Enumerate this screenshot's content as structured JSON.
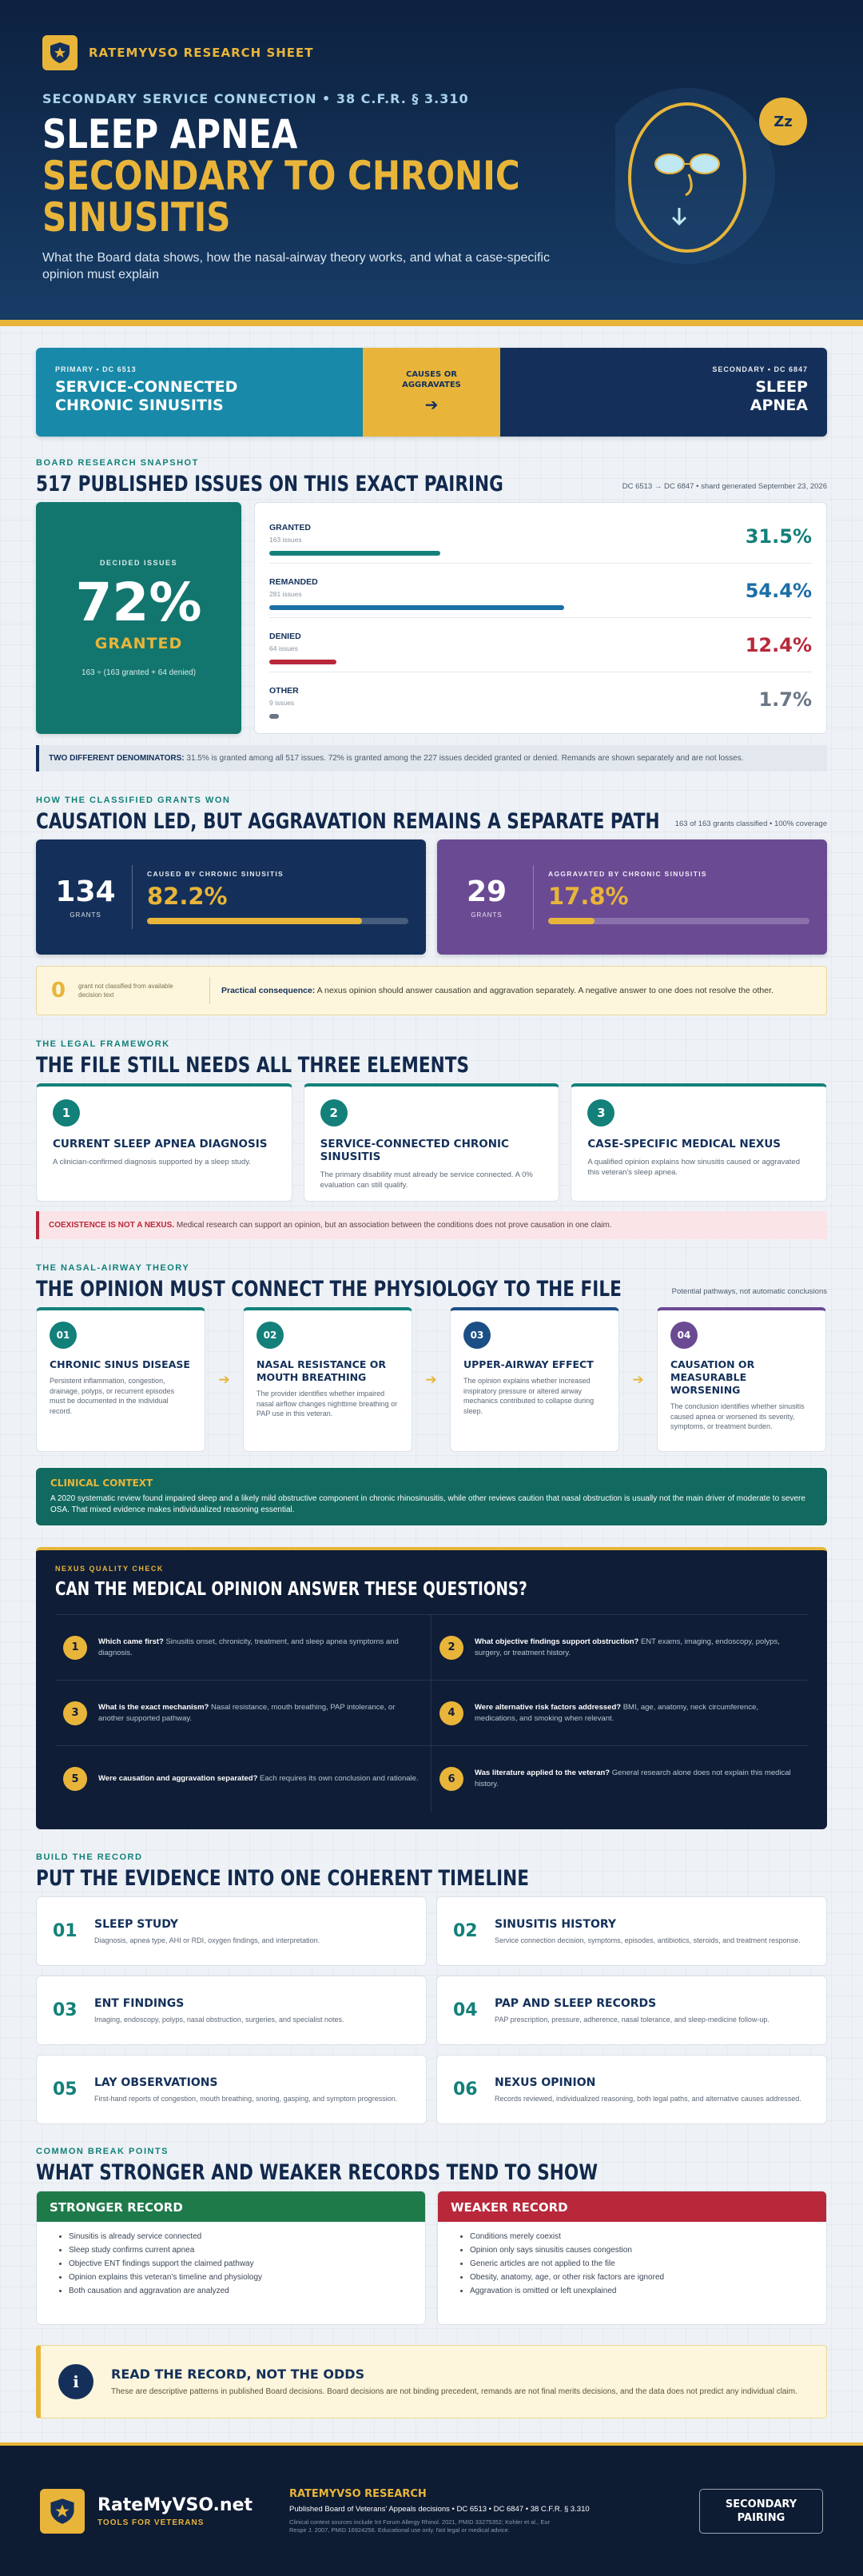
{
  "header": {
    "brand": "RATEMYVSO RESEARCH SHEET",
    "eyebrow": "SECONDARY SERVICE CONNECTION • 38 C.F.R. § 3.310",
    "title_line1": "SLEEP APNEA",
    "title_line2": "SECONDARY TO CHRONIC",
    "title_line3": "SINUSITIS",
    "subtitle": "What the Board data shows, how the nasal-airway theory works, and what a case-specific opinion must explain",
    "badge": "Zz"
  },
  "pairing": {
    "primary_eyebrow": "PRIMARY • DC 6513",
    "primary": "SERVICE-CONNECTED CHRONIC SINUSITIS",
    "link": "CAUSES OR AGGRAVATES",
    "arrow": "➔",
    "secondary_eyebrow": "SECONDARY • DC 6847",
    "secondary": "SLEEP APNEA"
  },
  "snapshot": {
    "eyebrow": "BOARD RESEARCH SNAPSHOT",
    "title": "517 PUBLISHED ISSUES ON THIS EXACT PAIRING",
    "meta": "DC 6513 → DC 6847 • shard generated September 23, 2026",
    "decided_label": "DECIDED ISSUES",
    "decided_value": "72%",
    "decided_caption": "GRANTED",
    "decided_formula": "163 ÷ (163 granted + 64 denied)",
    "outcomes": [
      {
        "name": "GRANTED",
        "count": "163 issues",
        "value": 31.5,
        "value_label": "31.5%",
        "color": "#13807a"
      },
      {
        "name": "REMANDED",
        "count": "281 issues",
        "value": 54.4,
        "value_label": "54.4%",
        "color": "#1c6ea6"
      },
      {
        "name": "DENIED",
        "count": "64 issues",
        "value": 12.4,
        "value_label": "12.4%",
        "color": "#b8283a"
      },
      {
        "name": "OTHER",
        "count": "9 issues",
        "value": 1.7,
        "value_label": "1.7%",
        "color": "#6a7685"
      }
    ],
    "note_lead": "TWO DIFFERENT DENOMINATORS:",
    "note": "31.5% is granted among all 517 issues. 72% is granted among the 227 issues decided granted or denied. Remands are shown separately and are not losses."
  },
  "grants": {
    "eyebrow": "HOW THE CLASSIFIED GRANTS WON",
    "title": "CAUSATION LED, BUT AGGRAVATION REMAINS A SEPARATE PATH",
    "meta": "163 of 163 grants classified • 100% coverage",
    "cards": [
      {
        "count": 134,
        "count_label": "GRANTS",
        "name": "CAUSED BY CHRONIC SINUSITIS",
        "value": 82.2,
        "value_label": "82.2%",
        "color": "#14305a"
      },
      {
        "count": 29,
        "count_label": "GRANTS",
        "name": "AGGRAVATED BY CHRONIC SINUSITIS",
        "value": 17.8,
        "value_label": "17.8%",
        "color": "#6b4a94"
      }
    ],
    "unclassified": 0,
    "unclassified_label": "grant not classified from available decision text",
    "consequence_lead": "Practical consequence:",
    "consequence": "A nexus opinion should answer causation and aggravation separately. A negative answer to one does not resolve the other."
  },
  "legal": {
    "eyebrow": "THE LEGAL FRAMEWORK",
    "title": "THE FILE STILL NEEDS ALL THREE ELEMENTS",
    "elements": [
      {
        "num": "1",
        "title": "CURRENT SLEEP APNEA DIAGNOSIS",
        "text": "A clinician-confirmed diagnosis supported by a sleep study."
      },
      {
        "num": "2",
        "title": "SERVICE-CONNECTED CHRONIC SINUSITIS",
        "text": "The primary disability must already be service connected. A 0% evaluation can still qualify."
      },
      {
        "num": "3",
        "title": "CASE-SPECIFIC MEDICAL NEXUS",
        "text": "A qualified opinion explains how sinusitis caused or aggravated this veteran's sleep apnea."
      }
    ],
    "warn_lead": "COEXISTENCE IS NOT A NEXUS.",
    "warn": "Medical research can support an opinion, but an association between the conditions does not prove causation in one claim."
  },
  "theory": {
    "eyebrow": "THE NASAL-AIRWAY THEORY",
    "title": "THE OPINION MUST CONNECT THE PHYSIOLOGY TO THE FILE",
    "meta": "Potential pathways, not automatic conclusions",
    "steps": [
      {
        "num": "01",
        "title": "CHRONIC SINUS DISEASE",
        "text": "Persistent inflammation, congestion, drainage, polyps, or recurrent episodes must be documented in the individual record.",
        "color": "#13807a"
      },
      {
        "num": "02",
        "title": "NASAL RESISTANCE OR MOUTH BREATHING",
        "text": "The provider identifies whether impaired nasal airflow changes nighttime breathing or PAP use in this veteran.",
        "color": "#13807a"
      },
      {
        "num": "03",
        "title": "UPPER-AIRWAY EFFECT",
        "text": "The opinion explains whether increased inspiratory pressure or altered airway mechanics contributed to collapse during sleep.",
        "color": "#1c4f86"
      },
      {
        "num": "04",
        "title": "CAUSATION OR MEASURABLE WORSENING",
        "text": "The conclusion identifies whether sinusitis caused apnea or worsened its severity, symptoms, or treatment burden.",
        "color": "#6b4a94"
      }
    ],
    "arrow": "➔",
    "context_title": "CLINICAL CONTEXT",
    "context": "A 2020 systematic review found impaired sleep and a likely mild obstructive component in chronic rhinosinusitis, while other reviews caution that nasal obstruction is usually not the main driver of moderate to severe OSA. That mixed evidence makes individualized reasoning essential."
  },
  "quality": {
    "eyebrow": "NEXUS QUALITY CHECK",
    "title": "CAN THE MEDICAL OPINION ANSWER THESE QUESTIONS?",
    "questions": [
      {
        "num": "1",
        "q": "Which came first?",
        "a": "Sinusitis onset, chronicity, treatment, and sleep apnea symptoms and diagnosis."
      },
      {
        "num": "2",
        "q": "What objective findings support obstruction?",
        "a": "ENT exams, imaging, endoscopy, polyps, surgery, or treatment history."
      },
      {
        "num": "3",
        "q": "What is the exact mechanism?",
        "a": "Nasal resistance, mouth breathing, PAP intolerance, or another supported pathway."
      },
      {
        "num": "4",
        "q": "Were alternative risk factors addressed?",
        "a": "BMI, age, anatomy, neck circumference, medications, and smoking when relevant."
      },
      {
        "num": "5",
        "q": "Were causation and aggravation separated?",
        "a": "Each requires its own conclusion and rationale."
      },
      {
        "num": "6",
        "q": "Was literature applied to the veteran?",
        "a": "General research alone does not explain this medical history."
      }
    ]
  },
  "timeline": {
    "eyebrow": "BUILD THE RECORD",
    "title": "PUT THE EVIDENCE INTO ONE COHERENT TIMELINE",
    "items": [
      {
        "num": "01",
        "title": "SLEEP STUDY",
        "text": "Diagnosis, apnea type, AHI or RDI, oxygen findings, and interpretation."
      },
      {
        "num": "02",
        "title": "SINUSITIS HISTORY",
        "text": "Service connection decision, symptoms, episodes, antibiotics, steroids, and treatment response."
      },
      {
        "num": "03",
        "title": "ENT FINDINGS",
        "text": "Imaging, endoscopy, polyps, nasal obstruction, surgeries, and specialist notes."
      },
      {
        "num": "04",
        "title": "PAP AND SLEEP RECORDS",
        "text": "PAP prescription, pressure, adherence, nasal tolerance, and sleep-medicine follow-up."
      },
      {
        "num": "05",
        "title": "LAY OBSERVATIONS",
        "text": "First-hand reports of congestion, mouth breathing, snoring, gasping, and symptom progression."
      },
      {
        "num": "06",
        "title": "NEXUS OPINION",
        "text": "Records reviewed, individualized reasoning, both legal paths, and alternative causes addressed."
      }
    ]
  },
  "compare": {
    "eyebrow": "COMMON BREAK POINTS",
    "title": "WHAT STRONGER AND WEAKER RECORDS TEND TO SHOW",
    "columns": [
      {
        "title": "STRONGER RECORD",
        "color": "#1f7a4a",
        "items": [
          "Sinusitis is already service connected",
          "Sleep study confirms current apnea",
          "Objective ENT findings support the claimed pathway",
          "Opinion explains this veteran's timeline and physiology",
          "Both causation and aggravation are analyzed"
        ]
      },
      {
        "title": "WEAKER RECORD",
        "color": "#b8283a",
        "items": [
          "Conditions merely coexist",
          "Opinion only says sinusitis causes congestion",
          "Generic articles are not applied to the file",
          "Obesity, anatomy, age, or other risk factors are ignored",
          "Aggravation is omitted or left unexplained"
        ]
      }
    ]
  },
  "callout": {
    "icon": "i",
    "title": "READ THE RECORD, NOT THE ODDS",
    "text": "These are descriptive patterns in published Board decisions. Board decisions are not binding precedent, remands are not final merits decisions, and the data does not predict any individual claim."
  },
  "footer": {
    "brand": "RateMyVSO.net",
    "tagline": "TOOLS FOR VETERANS",
    "title": "RATEMYVSO RESEARCH",
    "line": "Published Board of Veterans' Appeals decisions • DC 6513 • DC 6847 • 38 C.F.R. § 3.310",
    "sources": "Clinical context sources include Int Forum Allergy Rhinol. 2021, PMID 33275352; Kohler et al., Eur Respir J. 2007, PMID 16924256. Educational use only. Not legal or medical advice.",
    "button": "SECONDARY PAIRING"
  }
}
